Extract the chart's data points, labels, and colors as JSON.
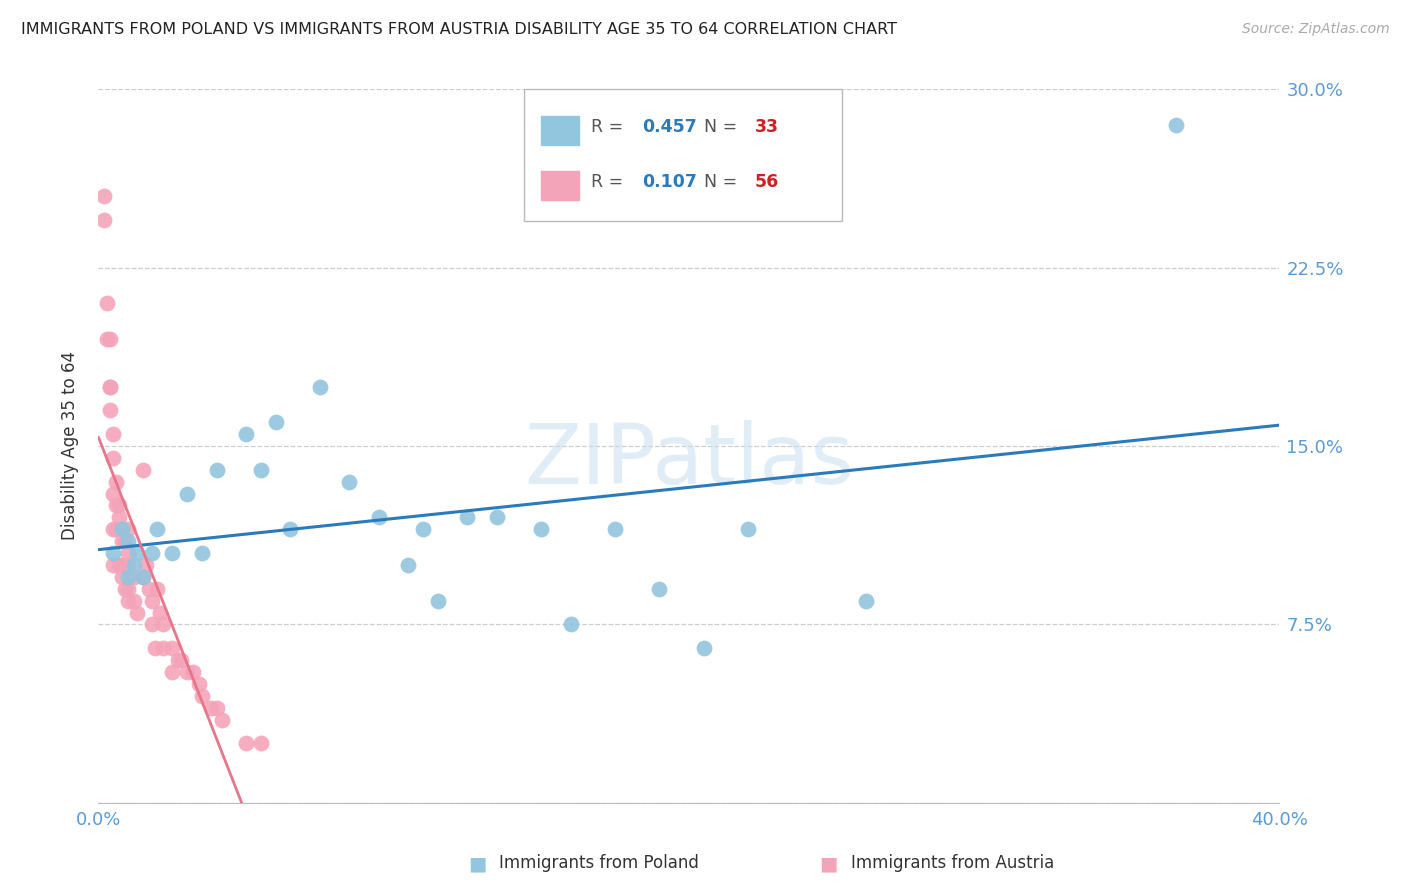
{
  "title": "IMMIGRANTS FROM POLAND VS IMMIGRANTS FROM AUSTRIA DISABILITY AGE 35 TO 64 CORRELATION CHART",
  "source": "Source: ZipAtlas.com",
  "ylabel": "Disability Age 35 to 64",
  "xlim": [
    0.0,
    0.4
  ],
  "ylim": [
    0.0,
    0.3
  ],
  "xticks": [
    0.0,
    0.1,
    0.2,
    0.3,
    0.4
  ],
  "yticks": [
    0.0,
    0.075,
    0.15,
    0.225,
    0.3
  ],
  "ytick_labels_right": [
    "",
    "7.5%",
    "15.0%",
    "22.5%",
    "30.0%"
  ],
  "xtick_labels": [
    "0.0%",
    "",
    "",
    "",
    "40.0%"
  ],
  "legend_r1": "0.457",
  "legend_n1": "33",
  "legend_r2": "0.107",
  "legend_n2": "56",
  "blue_scatter_color": "#92c5de",
  "pink_scatter_color": "#f4a4b8",
  "blue_line_color": "#2b7bba",
  "pink_line_color": "#e8758a",
  "pink_dash_color": "#e8a0b0",
  "axis_tick_color": "#5b9bd5",
  "grid_color": "#c8c8c8",
  "watermark_text": "ZIPatlas",
  "poland_x": [
    0.005,
    0.008,
    0.01,
    0.01,
    0.012,
    0.013,
    0.015,
    0.018,
    0.02,
    0.025,
    0.03,
    0.035,
    0.04,
    0.05,
    0.055,
    0.06,
    0.065,
    0.075,
    0.085,
    0.095,
    0.105,
    0.11,
    0.115,
    0.125,
    0.135,
    0.15,
    0.16,
    0.175,
    0.19,
    0.205,
    0.22,
    0.26,
    0.365
  ],
  "poland_y": [
    0.105,
    0.115,
    0.095,
    0.11,
    0.1,
    0.105,
    0.095,
    0.105,
    0.115,
    0.105,
    0.13,
    0.105,
    0.14,
    0.155,
    0.14,
    0.16,
    0.115,
    0.175,
    0.135,
    0.12,
    0.1,
    0.115,
    0.085,
    0.12,
    0.12,
    0.115,
    0.075,
    0.115,
    0.09,
    0.065,
    0.115,
    0.085,
    0.285
  ],
  "austria_x": [
    0.002,
    0.002,
    0.003,
    0.003,
    0.004,
    0.004,
    0.004,
    0.004,
    0.005,
    0.005,
    0.005,
    0.005,
    0.005,
    0.006,
    0.006,
    0.006,
    0.007,
    0.007,
    0.007,
    0.008,
    0.008,
    0.008,
    0.009,
    0.009,
    0.01,
    0.01,
    0.01,
    0.01,
    0.01,
    0.012,
    0.012,
    0.013,
    0.015,
    0.015,
    0.016,
    0.017,
    0.018,
    0.018,
    0.019,
    0.02,
    0.021,
    0.022,
    0.022,
    0.025,
    0.025,
    0.027,
    0.028,
    0.03,
    0.032,
    0.034,
    0.035,
    0.038,
    0.04,
    0.042,
    0.05,
    0.055
  ],
  "austria_y": [
    0.245,
    0.255,
    0.21,
    0.195,
    0.195,
    0.175,
    0.175,
    0.165,
    0.155,
    0.145,
    0.13,
    0.115,
    0.1,
    0.135,
    0.125,
    0.115,
    0.125,
    0.12,
    0.1,
    0.11,
    0.1,
    0.095,
    0.11,
    0.09,
    0.115,
    0.105,
    0.1,
    0.09,
    0.085,
    0.095,
    0.085,
    0.08,
    0.14,
    0.095,
    0.1,
    0.09,
    0.085,
    0.075,
    0.065,
    0.09,
    0.08,
    0.075,
    0.065,
    0.065,
    0.055,
    0.06,
    0.06,
    0.055,
    0.055,
    0.05,
    0.045,
    0.04,
    0.04,
    0.035,
    0.025,
    0.025
  ],
  "background_color": "#ffffff"
}
